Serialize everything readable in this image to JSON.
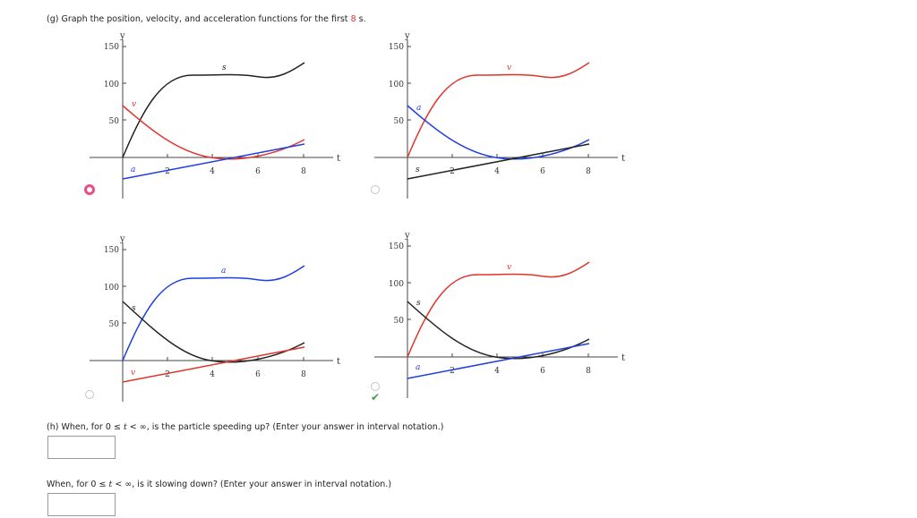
{
  "part_g": {
    "prefix": "(g) Graph the position, velocity, and acceleration functions for the first ",
    "number": "8",
    "suffix": " s."
  },
  "graphs": [
    {
      "selected": true,
      "correct": false,
      "axis_x": "t",
      "axis_y": "y",
      "x_ticks": [
        "2",
        "4",
        "6",
        "8"
      ],
      "y_ticks": [
        "150",
        "100",
        "50"
      ],
      "curve_labels": {
        "black": "s",
        "red": "v",
        "blue": "a"
      }
    },
    {
      "selected": false,
      "correct": false,
      "axis_x": "t",
      "axis_y": "y",
      "x_ticks": [
        "2",
        "4",
        "6",
        "8"
      ],
      "y_ticks": [
        "150",
        "100",
        "50"
      ],
      "curve_labels": {
        "black": "s",
        "red": "v",
        "blue": "a"
      }
    },
    {
      "selected": false,
      "correct": false,
      "axis_x": "t",
      "axis_y": "y",
      "x_ticks": [
        "2",
        "4",
        "6",
        "8"
      ],
      "y_ticks": [
        "150",
        "100",
        "50"
      ],
      "curve_labels": {
        "black": "s",
        "red": "v",
        "blue": "a"
      }
    },
    {
      "selected": false,
      "correct": true,
      "axis_x": "t",
      "axis_y": "y",
      "x_ticks": [
        "2",
        "4",
        "6",
        "8"
      ],
      "y_ticks": [
        "150",
        "100",
        "50"
      ],
      "curve_labels": {
        "black": "s",
        "red": "v",
        "blue": "a"
      }
    }
  ],
  "colors": {
    "black": "#222222",
    "red": "#e0352b",
    "blue": "#1f3fe0"
  },
  "part_h": {
    "prefix": "(h) When, for ",
    "cond_0": "0",
    "cond_le": "≤",
    "cond_t": "t",
    "cond_lt": "<",
    "cond_inf": "∞",
    "suffix": ", is the particle speeding up? (Enter your answer in interval notation.)",
    "answer": ""
  },
  "slowing": {
    "prefix": "When, for ",
    "cond_0": "0",
    "cond_le": "≤",
    "cond_t": "t",
    "cond_lt": "<",
    "cond_inf": "∞",
    "suffix": ", is it slowing down? (Enter your answer in interval notation.)",
    "answer": ""
  }
}
